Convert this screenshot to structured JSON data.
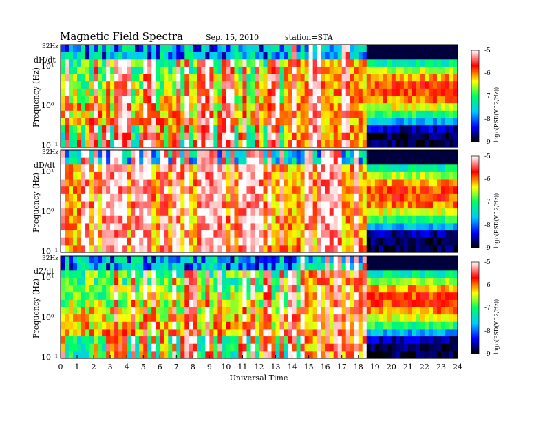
{
  "header": {
    "title": "Magnetic  Field  Spectra",
    "date": "Sep. 15, 2010",
    "station": "station=STA"
  },
  "chart_data": {
    "type": "heatmap",
    "xlabel": "Universal Time",
    "x_ticks": [
      "0",
      "1",
      "2",
      "3",
      "4",
      "5",
      "6",
      "7",
      "8",
      "9",
      "10",
      "11",
      "12",
      "13",
      "14",
      "15",
      "16",
      "17",
      "18",
      "19",
      "20",
      "21",
      "22",
      "23",
      "24"
    ],
    "xlim": [
      0,
      24
    ],
    "ylabel": "Frequency  (Hz)",
    "y_scale": "log",
    "ylim_hz": [
      0.1,
      32
    ],
    "y_tick_labels": [
      "10⁻¹",
      "10⁰",
      "10¹"
    ],
    "y_top_label": "32Hz",
    "colorbar": {
      "label": "log₁₀(PSD(V^2/Hz))",
      "range": [
        -9,
        -5
      ],
      "ticks": [
        "-5",
        "-6",
        "-7",
        "-8",
        "-9"
      ],
      "colors": [
        "#000000",
        "#0000ff",
        "#00c8ff",
        "#00ff64",
        "#ffff00",
        "#ff0000",
        "#ffffff"
      ]
    },
    "panels": [
      {
        "label": "dH/dt",
        "segments": [
          {
            "start": 0,
            "end": 13.5,
            "level": "active"
          },
          {
            "start": 13.5,
            "end": 18.5,
            "level": "very-active"
          },
          {
            "start": 18.5,
            "end": 24,
            "level": "quiet"
          }
        ]
      },
      {
        "label": "dD/dt",
        "segments": [
          {
            "start": 0,
            "end": 18.5,
            "level": "very-active"
          },
          {
            "start": 18.5,
            "end": 24,
            "level": "quiet"
          }
        ]
      },
      {
        "label": "dZ/dt",
        "segments": [
          {
            "start": 0,
            "end": 14.5,
            "level": "active"
          },
          {
            "start": 14.5,
            "end": 18.5,
            "level": "very-active"
          },
          {
            "start": 18.5,
            "end": 24,
            "level": "quiet"
          }
        ]
      }
    ]
  }
}
